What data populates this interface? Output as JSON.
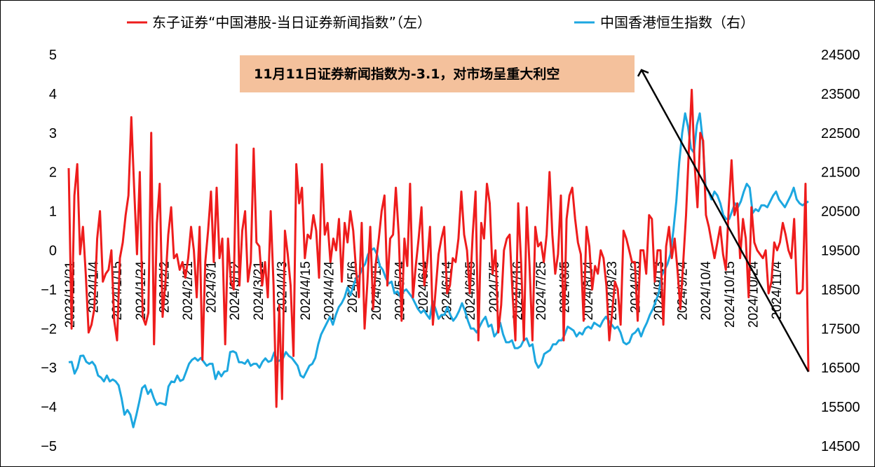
{
  "chart_data": {
    "type": "line",
    "legend": {
      "position": "top",
      "entries": [
        {
          "label": "东子证券“中国港股-当日证券新闻指数”（左）",
          "color": "#ee1c1c"
        },
        {
          "label": "中国香港恒生指数（右）",
          "color": "#1ca7e0"
        }
      ]
    },
    "annotation": {
      "text": "11月11日证券新闻指数为-3.1，对市场呈重大利空"
    },
    "y_left": {
      "range": [
        -5,
        5
      ],
      "ticks": [
        "5",
        "4",
        "3",
        "2",
        "1",
        "0",
        "−1",
        "−2",
        "−3",
        "−4",
        "−5"
      ]
    },
    "y_right": {
      "range": [
        14500,
        24500
      ],
      "ticks": [
        "24500",
        "23500",
        "22500",
        "21500",
        "20500",
        "19500",
        "18500",
        "17500",
        "16500",
        "15500",
        "14500"
      ]
    },
    "x_tick_labels": [
      "2023/12/21",
      "2024/1/4",
      "2024/1/15",
      "2024/1/24",
      "2024/2/2",
      "2024/2/21",
      "2024/3/1",
      "2024/3/12",
      "2024/3/21",
      "2024/4/3",
      "2024/4/15",
      "2024/4/24",
      "2024/5/6",
      "2024/5/15",
      "2024/5/24",
      "2024/6/4",
      "2024/6/14",
      "2024/6/25",
      "2024/7/5",
      "2024/7/16",
      "2024/7/25",
      "2024/8/5",
      "2024/8/14",
      "2024/8/23",
      "2024/9/3",
      "2024/9/13",
      "2024/9/24",
      "2024/10/4",
      "2024/10/15",
      "2024/10/24",
      "2024/11/4"
    ],
    "grid": false,
    "series": [
      {
        "name": "东子证券“中国港股-当日证券新闻指数”（左）",
        "axis": "left",
        "color": "#ee1c1c",
        "values": [
          2.1,
          -2.0,
          1.4,
          2.2,
          -0.1,
          0.6,
          -0.6,
          -2.1,
          -1.9,
          -1.5,
          0.3,
          1.0,
          -0.8,
          -0.6,
          -0.5,
          0.0,
          -1.8,
          -2.3,
          -0.2,
          0.2,
          0.9,
          1.4,
          3.4,
          1.6,
          -0.1,
          2.0,
          -1.7,
          -1.9,
          -1.6,
          3.0,
          -2.4,
          0.7,
          1.7,
          -1.7,
          -0.8,
          0.4,
          1.1,
          -0.2,
          -0.1,
          -0.5,
          -0.3,
          -0.7,
          -0.2,
          0.6,
          0.0,
          -1.2,
          0.6,
          -2.8,
          -0.3,
          0.5,
          1.5,
          -0.3,
          1.6,
          -0.2,
          0.3,
          -2.4,
          0.3,
          -0.8,
          -1.0,
          2.7,
          -0.9,
          0.5,
          1.0,
          -0.8,
          -0.3,
          2.6,
          0.2,
          0.1,
          -0.9,
          -0.3,
          -1.2,
          1.0,
          -0.9,
          -4.0,
          -1.4,
          -3.8,
          0.5,
          -0.1,
          -0.9,
          -2.7,
          2.2,
          1.2,
          1.6,
          -0.2,
          0.4,
          0.3,
          0.9,
          0.5,
          -0.7,
          2.2,
          0.4,
          0.7,
          -0.3,
          0.3,
          0.0,
          0.8,
          -0.8,
          0.7,
          0.2,
          1.0,
          0.5,
          -0.5,
          -1.2,
          0.7,
          -2.0,
          -0.8,
          0.6,
          -1.5,
          -0.3,
          0.3,
          1.0,
          1.4,
          -0.9,
          0.3,
          0.4,
          1.6,
          0.4,
          -1.8,
          0.3,
          -0.4,
          1.7,
          -1.2,
          -0.4,
          0.3,
          1.1,
          -0.9,
          -0.3,
          0.6,
          -1.9,
          -1.0,
          -0.1,
          0.3,
          0.6,
          -1.1,
          -0.9,
          -0.2,
          -0.3,
          0.3,
          1.5,
          0.4,
          0.0,
          -1.1,
          0.4,
          1.5,
          -2.3,
          0.7,
          0.3,
          1.7,
          1.2,
          -0.6,
          0.0,
          -2.1,
          -1.4,
          0.0,
          0.3,
          0.4,
          -1.1,
          -2.3,
          1.2,
          -0.3,
          -2.3,
          1.1,
          -0.4,
          -2.3,
          0.6,
          0.1,
          0.2,
          -0.3,
          0.4,
          2.0,
          0.4,
          -0.6,
          -0.1,
          1.4,
          -2.3,
          0.8,
          1.4,
          1.6,
          0.8,
          0.2,
          -0.1,
          -1.8,
          0.6,
          0.1,
          -1.0,
          -0.4,
          -0.6,
          0.0,
          -0.2,
          -0.9,
          -2.3,
          -1.6,
          -0.8,
          -1.0,
          -1.9,
          0.5,
          0.3,
          0.0,
          -0.3,
          -0.3,
          -1.8,
          0.0,
          0.0,
          -0.6,
          0.9,
          0.8,
          -0.8,
          0.0,
          0.0,
          -1.9,
          0.1,
          0.6,
          -0.2,
          0.3,
          -0.5,
          -1.5,
          -0.3,
          0.9,
          2.6,
          4.1,
          2.2,
          1.1,
          3.0,
          2.8,
          0.9,
          0.6,
          0.2,
          -0.2,
          0.2,
          0.6,
          -0.1,
          -0.5,
          1.1,
          2.3,
          0.9,
          1.2,
          -0.2,
          0.8,
          0.3,
          -1.2,
          1.1,
          0.2,
          0.0,
          -0.1,
          -0.2,
          0.0,
          -1.1,
          -0.8,
          0.2,
          0.0,
          0.2,
          0.7,
          0.4,
          0.0,
          -0.2,
          0.8,
          -1.1,
          -1.1,
          -1.0,
          1.7,
          -3.1
        ]
      },
      {
        "name": "中国香港恒生指数（右）",
        "axis": "right",
        "color": "#1ca7e0",
        "values": [
          16640,
          16650,
          16350,
          16500,
          16800,
          16810,
          16650,
          16600,
          16650,
          16550,
          16300,
          16250,
          16150,
          16300,
          16150,
          16200,
          16150,
          16050,
          15720,
          15300,
          15420,
          15300,
          14980,
          15280,
          15620,
          15980,
          16050,
          15830,
          15940,
          15720,
          15550,
          15600,
          15580,
          15550,
          16020,
          16150,
          16130,
          16300,
          16160,
          16200,
          16400,
          16600,
          16700,
          16750,
          16680,
          16750,
          16650,
          16550,
          16600,
          16600,
          16210,
          16400,
          16280,
          16400,
          16420,
          16900,
          16920,
          16880,
          16640,
          16640,
          16600,
          16700,
          16550,
          16600,
          16600,
          16500,
          16650,
          16740,
          16650,
          16680,
          16890,
          16660,
          16690,
          16740,
          16900,
          16800,
          16750,
          16650,
          16550,
          16300,
          16250,
          16400,
          16550,
          16600,
          16750,
          17100,
          17350,
          17500,
          17650,
          17800,
          17600,
          17850,
          18050,
          18150,
          18300,
          18550,
          18350,
          18600,
          18800,
          18850,
          19050,
          19150,
          19400,
          19500,
          19550,
          19400,
          19100,
          19000,
          18800,
          18650,
          18700,
          18400,
          18450,
          18300,
          18450,
          18500,
          18400,
          18300,
          18150,
          18000,
          17900,
          17970,
          17850,
          17750,
          18200,
          18000,
          17750,
          17850,
          17850,
          18050,
          17850,
          17700,
          17800,
          17950,
          18150,
          17950,
          17700,
          17500,
          17500,
          17400,
          17550,
          17700,
          17800,
          17550,
          17600,
          17300,
          17400,
          17650,
          17350,
          17150,
          17150,
          17200,
          17000,
          17000,
          17050,
          17200,
          17250,
          17050,
          17100,
          16650,
          16500,
          16600,
          16850,
          16900,
          16950,
          17100,
          17100,
          17200,
          17200,
          17350,
          17550,
          17500,
          17450,
          17300,
          17400,
          17350,
          17500,
          17550,
          17500,
          17650,
          17600,
          17550,
          17700,
          17800,
          17700,
          17600,
          17500,
          17550,
          17400,
          17150,
          17100,
          17150,
          17350,
          17400,
          17500,
          17300,
          17500,
          17650,
          17850,
          18000,
          18200,
          18400,
          18850,
          19000,
          19150,
          19400,
          20000,
          20750,
          21750,
          22500,
          23000,
          22650,
          22100,
          22000,
          22700,
          23000,
          22300,
          21100,
          21000,
          20800,
          21000,
          20900,
          20700,
          20400,
          20300,
          20300,
          20500,
          20700,
          20600,
          20750,
          21000,
          21200,
          21100,
          20450,
          20550,
          20500,
          20650,
          20650,
          20600,
          20750,
          20900,
          21000,
          20800,
          20700,
          20600,
          20750,
          20900,
          21100,
          20800,
          20700,
          20650,
          20700,
          20750
        ]
      }
    ]
  }
}
